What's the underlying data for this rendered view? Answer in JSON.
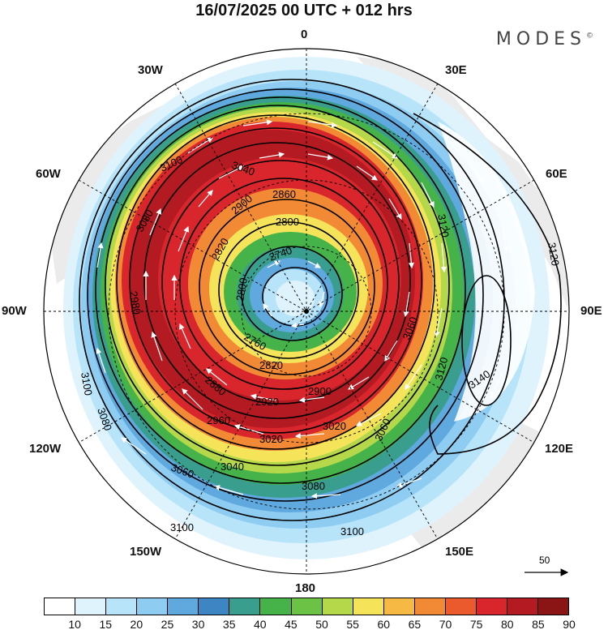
{
  "title": "16/07/2025  00 UTC  + 012 hrs",
  "brand": "MODES",
  "brand_mark": "©",
  "longitude_labels": {
    "top": "0",
    "bottom": "180",
    "left": "90W",
    "right": "90E",
    "upper_left_1": "30W",
    "upper_left_2": "60W",
    "upper_right_1": "30E",
    "upper_right_2": "60E",
    "lower_left_1": "120W",
    "lower_left_2": "150W",
    "lower_right_1": "120E",
    "lower_right_2": "150E"
  },
  "reference_vector": {
    "label": "50"
  },
  "contour_labels": [
    "3100",
    "3040",
    "2860",
    "2800",
    "2740",
    "2820",
    "2900",
    "2980",
    "3080",
    "3120",
    "3120",
    "3140",
    "3120",
    "3060",
    "2880",
    "2820",
    "2900",
    "2920",
    "2960",
    "3020",
    "3020",
    "3040",
    "3060",
    "3080",
    "3100",
    "3100",
    "3100",
    "3080",
    "3060",
    "2800",
    "2760"
  ],
  "colorbar": {
    "colors": [
      "#ffffff",
      "#dff3fd",
      "#b8e4f9",
      "#8ecdf1",
      "#5fa9df",
      "#3e86c3",
      "#3a9e8e",
      "#45b349",
      "#6cc244",
      "#b4d84a",
      "#f5e45a",
      "#f6ba44",
      "#f28a35",
      "#ea5a2c",
      "#d8262c",
      "#b41a22",
      "#8b1414"
    ],
    "labels": [
      "10",
      "15",
      "20",
      "25",
      "30",
      "35",
      "40",
      "45",
      "50",
      "55",
      "60",
      "65",
      "70",
      "75",
      "80",
      "85",
      "90"
    ]
  }
}
